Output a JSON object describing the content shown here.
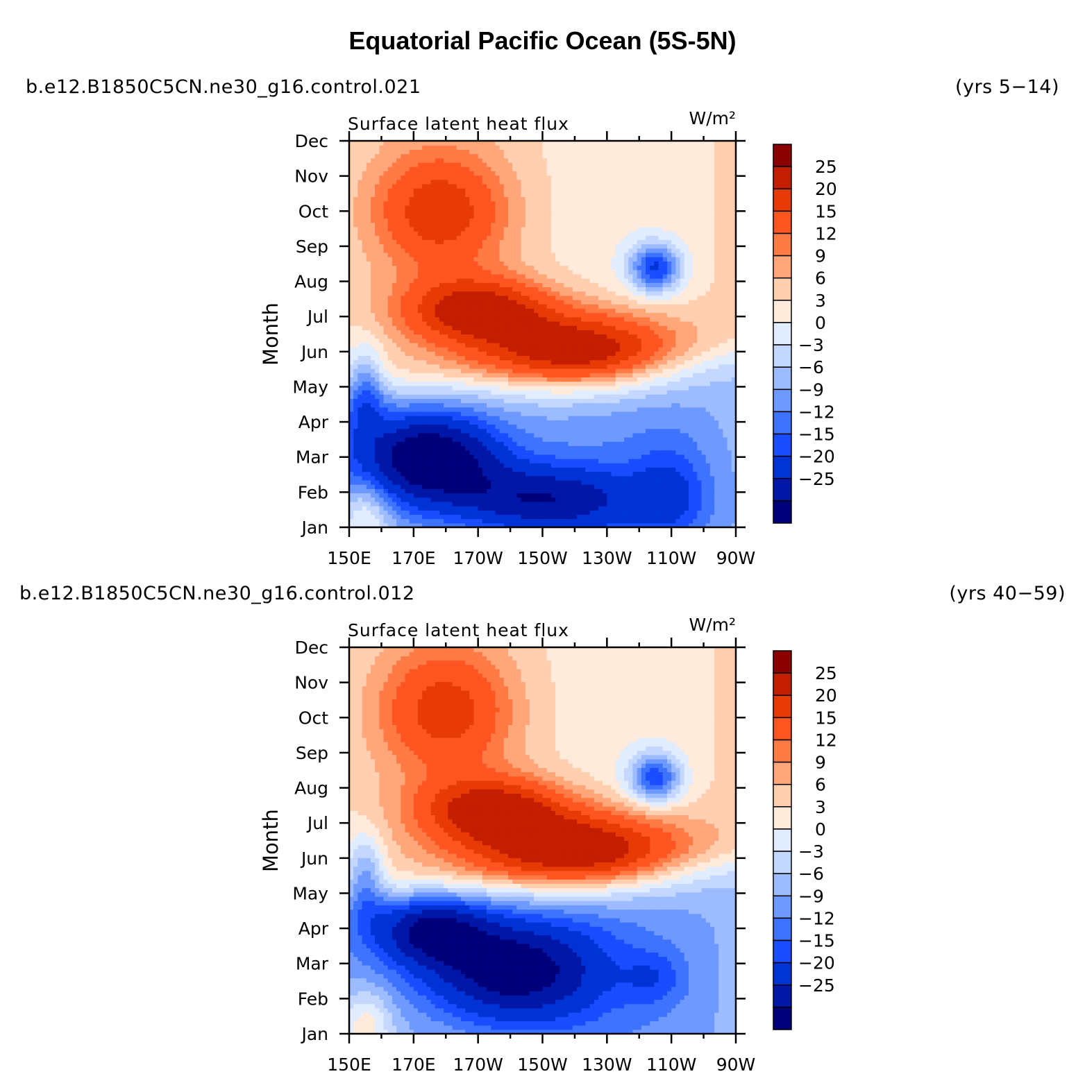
{
  "title": "Equatorial Pacific Ocean (5S-5N)",
  "colors": [
    "#00007a",
    "#0017a8",
    "#0033d6",
    "#1a4dff",
    "#3d73ff",
    "#6e99ff",
    "#9dbcff",
    "#c4d7ff",
    "#e1ecff",
    "#ffeadb",
    "#ffcfb0",
    "#ffa77a",
    "#ff7a45",
    "#ff5520",
    "#e83a05",
    "#c41e00",
    "#8b0000"
  ],
  "chart_data": [
    {
      "type": "heatmap",
      "case": "b.e12.B1850C5CN.ne30_g16.control.021",
      "years": "(yrs 5−14)",
      "variable": "Surface latent heat flux",
      "units": "W/m²",
      "ylabel": "Month",
      "xlabel": "",
      "x_ticks": [
        "150E",
        "170E",
        "170W",
        "150W",
        "130W",
        "110W",
        "90W"
      ],
      "x_range_lon": [
        150,
        270
      ],
      "y_ticks": [
        "Jan",
        "Feb",
        "Mar",
        "Apr",
        "May",
        "Jun",
        "Jul",
        "Aug",
        "Sep",
        "Oct",
        "Nov",
        "Dec"
      ],
      "colorbar_levels": [
        "25",
        "20",
        "15",
        "12",
        "9",
        "6",
        "3",
        "0",
        "−3",
        "−6",
        "−9",
        "−12",
        "−15",
        "−20",
        "−25"
      ],
      "features": [
        {
          "lon": 222,
          "month": 6.0,
          "value": 27,
          "spread_lon": 30,
          "spread_month": 1.1
        },
        {
          "lon": 190,
          "month": 7.2,
          "value": 22,
          "spread_lon": 22,
          "spread_month": 0.9
        },
        {
          "lon": 178,
          "month": 10.0,
          "value": 16,
          "spread_lon": 20,
          "spread_month": 1.6
        },
        {
          "lon": 155,
          "month": 1.3,
          "value": 10,
          "spread_lon": 8,
          "spread_month": 1.0
        },
        {
          "lon": 175,
          "month": 3.0,
          "value": -27,
          "spread_lon": 22,
          "spread_month": 1.3
        },
        {
          "lon": 210,
          "month": 1.8,
          "value": -18,
          "spread_lon": 30,
          "spread_month": 1.0
        },
        {
          "lon": 245,
          "month": 8.4,
          "value": -20,
          "spread_lon": 8,
          "spread_month": 0.7
        },
        {
          "lon": 250,
          "month": 2.0,
          "value": -8,
          "spread_lon": 12,
          "spread_month": 1.5
        },
        {
          "lon": 155,
          "month": 5.0,
          "value": -12,
          "spread_lon": 6,
          "spread_month": 1.2
        }
      ]
    },
    {
      "type": "heatmap",
      "case": "b.e12.B1850C5CN.ne30_g16.control.012",
      "years": "(yrs 40−59)",
      "variable": "Surface latent heat flux",
      "units": "W/m²",
      "ylabel": "Month",
      "xlabel": "",
      "x_ticks": [
        "150E",
        "170E",
        "170W",
        "150W",
        "130W",
        "110W",
        "90W"
      ],
      "x_range_lon": [
        150,
        270
      ],
      "y_ticks": [
        "Jan",
        "Feb",
        "Mar",
        "Apr",
        "May",
        "Jun",
        "Jul",
        "Aug",
        "Sep",
        "Oct",
        "Nov",
        "Dec"
      ],
      "colorbar_levels": [
        "25",
        "20",
        "15",
        "12",
        "9",
        "6",
        "3",
        "0",
        "−3",
        "−6",
        "−9",
        "−12",
        "−15",
        "−20",
        "−25"
      ],
      "features": [
        {
          "lon": 222,
          "month": 6.2,
          "value": 28,
          "spread_lon": 32,
          "spread_month": 1.1
        },
        {
          "lon": 195,
          "month": 7.4,
          "value": 22,
          "spread_lon": 22,
          "spread_month": 0.9
        },
        {
          "lon": 180,
          "month": 10.2,
          "value": 15,
          "spread_lon": 20,
          "spread_month": 1.7
        },
        {
          "lon": 155,
          "month": 1.2,
          "value": 11,
          "spread_lon": 8,
          "spread_month": 1.0
        },
        {
          "lon": 200,
          "month": 2.8,
          "value": -24,
          "spread_lon": 28,
          "spread_month": 1.5
        },
        {
          "lon": 175,
          "month": 4.0,
          "value": -20,
          "spread_lon": 18,
          "spread_month": 1.0
        },
        {
          "lon": 245,
          "month": 8.3,
          "value": -19,
          "spread_lon": 8,
          "spread_month": 0.7
        },
        {
          "lon": 245,
          "month": 2.6,
          "value": -6,
          "spread_lon": 10,
          "spread_month": 0.8
        },
        {
          "lon": 155,
          "month": 5.5,
          "value": -12,
          "spread_lon": 6,
          "spread_month": 1.2
        }
      ]
    }
  ]
}
